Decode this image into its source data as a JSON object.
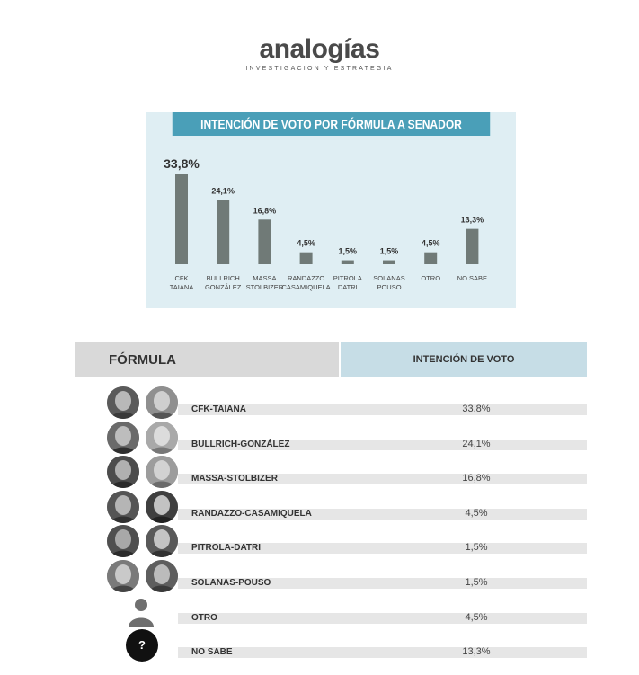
{
  "logo": {
    "name": "analogías",
    "tagline": "INVESTIGACION Y ESTRATEGIA"
  },
  "chart_data": {
    "type": "bar",
    "title": "INTENCIÓN DE VOTO POR FÓRMULA A SENADOR",
    "categories": [
      [
        "CFK",
        "TAIANA"
      ],
      [
        "BULLRICH",
        "GONZÁLEZ"
      ],
      [
        "MASSA",
        "STOLBIZER"
      ],
      [
        "RANDAZZO",
        "CASAMIQUELA"
      ],
      [
        "PITROLA",
        "DATRI"
      ],
      [
        "SOLANAS",
        "POUSO"
      ],
      [
        "OTRO"
      ],
      [
        "NO SABE"
      ]
    ],
    "values": [
      33.8,
      24.1,
      16.8,
      4.5,
      1.5,
      1.5,
      4.5,
      13.3
    ],
    "value_labels": [
      "33,8%",
      "24,1%",
      "16,8%",
      "4,5%",
      "1,5%",
      "1,5%",
      "4,5%",
      "13,3%"
    ],
    "ylim": [
      0,
      33.8
    ],
    "grid": false,
    "bar_color": "#707a77",
    "background_color": "#dfeef3",
    "title_color": "#4a9fb8"
  },
  "table": {
    "header_formula": "FÓRMULA",
    "header_vote": "INTENCIÓN DE VOTO",
    "rows": [
      {
        "name": "CFK-TAIANA",
        "value": "33,8%",
        "portrait": "photo"
      },
      {
        "name": "BULLRICH-GONZÁLEZ",
        "value": "24,1%",
        "portrait": "photo"
      },
      {
        "name": "MASSA-STOLBIZER",
        "value": "16,8%",
        "portrait": "photo"
      },
      {
        "name": "RANDAZZO-CASAMIQUELA",
        "value": "4,5%",
        "portrait": "photo"
      },
      {
        "name": "PITROLA-DATRI",
        "value": "1,5%",
        "portrait": "photo"
      },
      {
        "name": "SOLANAS-POUSO",
        "value": "1,5%",
        "portrait": "photo"
      },
      {
        "name": "OTRO",
        "value": "4,5%",
        "portrait": "person-silhouette-icon"
      },
      {
        "name": "NO SABE",
        "value": "13,3%",
        "portrait": "question-mark-icon",
        "badge": "?"
      }
    ]
  }
}
